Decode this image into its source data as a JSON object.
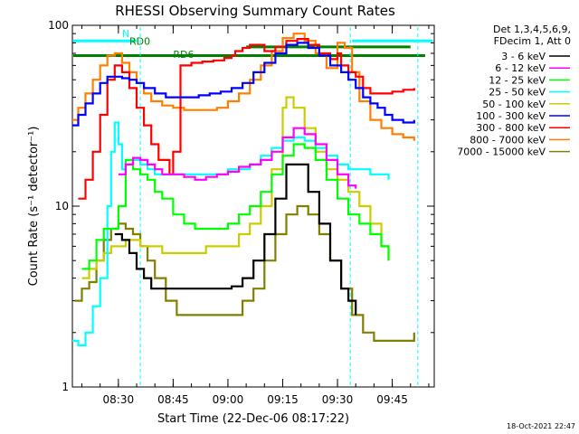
{
  "chart_data": {
    "type": "line",
    "title": "RHESSI Observing Summary Count Rates",
    "xlabel": "Start Time (22-Dec-06 08:17:22)",
    "ylabel": "Count Rate (s⁻¹ detector⁻¹)",
    "yscale": "log",
    "xlim": [
      17.4,
      116.5
    ],
    "ylim": [
      1,
      100
    ],
    "x_unit": "minutes after 08:00 UT",
    "x_ticks": [
      {
        "value": 30,
        "label": "08:30"
      },
      {
        "value": 45,
        "label": "08:45"
      },
      {
        "value": 60,
        "label": "09:00"
      },
      {
        "value": 75,
        "label": "09:15"
      },
      {
        "value": 90,
        "label": "09:30"
      },
      {
        "value": 105,
        "label": "09:45"
      }
    ],
    "y_ticks": [
      {
        "value": 1,
        "label": "1"
      },
      {
        "value": 10,
        "label": "10"
      },
      {
        "value": 100,
        "label": "100"
      }
    ],
    "legend_header": [
      "Det 1,3,4,5,6,9,",
      "FDecim 1, Att 0"
    ],
    "legend_position": "right",
    "flag_labels": [
      {
        "text": "N",
        "color": "#00ffff"
      },
      {
        "text": "RD0",
        "color": "#007f00"
      },
      {
        "text": "RD6",
        "color": "#007f00"
      }
    ],
    "series": [
      {
        "name": "3 - 6 keV",
        "color": "#000000",
        "x": [
          29,
          31,
          33,
          35,
          37,
          39,
          41,
          43,
          45,
          47,
          50,
          53,
          57,
          61,
          64,
          67,
          70,
          73,
          76,
          79,
          82,
          85,
          88,
          91,
          93,
          95
        ],
        "y": [
          7,
          6.5,
          5.5,
          4.5,
          4,
          3.5,
          3.5,
          3.5,
          3.5,
          3.5,
          3.5,
          3.5,
          3.5,
          3.6,
          4,
          5,
          7,
          11,
          17,
          17,
          12,
          8,
          5,
          3.5,
          3,
          2.5
        ]
      },
      {
        "name": "6 - 12 keV",
        "color": "#ff00ff",
        "x": [
          30,
          32,
          34,
          36,
          38,
          40,
          42,
          45,
          48,
          51,
          54,
          57,
          60,
          63,
          66,
          69,
          72,
          75,
          78,
          81,
          84,
          87,
          90,
          93,
          95
        ],
        "y": [
          15,
          17,
          18.5,
          18,
          17,
          16,
          15,
          15,
          14.5,
          14,
          14.5,
          15,
          15.5,
          16.5,
          17,
          18,
          20,
          24,
          27,
          25,
          22,
          18,
          15,
          13,
          12.5
        ]
      },
      {
        "name": "12 - 25 keV",
        "color": "#00ff00",
        "x": [
          20,
          22,
          24,
          26,
          28,
          30,
          32,
          34,
          36,
          38,
          40,
          42,
          45,
          48,
          51,
          54,
          57,
          60,
          63,
          66,
          69,
          72,
          75,
          78,
          81,
          84,
          87,
          90,
          93,
          96,
          99,
          102,
          104
        ],
        "y": [
          4.5,
          5,
          6.5,
          7.5,
          7.5,
          10,
          18,
          16,
          15,
          14,
          12,
          11,
          9,
          8,
          7.5,
          7.5,
          7.5,
          8,
          9,
          10,
          12,
          15,
          19,
          22,
          21,
          18,
          14,
          11,
          9,
          8,
          7,
          6,
          5
        ]
      },
      {
        "name": "25 - 50 keV",
        "color": "#00ffff",
        "x": [
          17,
          19,
          21,
          23,
          25,
          27,
          28,
          29,
          30,
          31,
          32,
          34,
          36,
          38,
          40,
          42,
          45,
          48,
          51,
          54,
          57,
          60,
          63,
          66,
          69,
          72,
          75,
          78,
          81,
          84,
          87,
          90,
          93,
          96,
          99,
          102,
          104
        ],
        "y": [
          1.8,
          1.7,
          2,
          2.8,
          4,
          10,
          20,
          29,
          22,
          16,
          17,
          18,
          17,
          16,
          15,
          15,
          15,
          15,
          15,
          15,
          15,
          16,
          16,
          17,
          19,
          21,
          23,
          24,
          23,
          21,
          19,
          17,
          16,
          16,
          15,
          15,
          14
        ]
      },
      {
        "name": "50 - 100 keV",
        "color": "#cccc00",
        "x": [
          20,
          22,
          24,
          26,
          28,
          30,
          32,
          34,
          36,
          38,
          40,
          42,
          45,
          48,
          51,
          54,
          57,
          60,
          63,
          66,
          69,
          72,
          75,
          76,
          78,
          81,
          84,
          87,
          90,
          93,
          96,
          99,
          102,
          104
        ],
        "y": [
          4,
          4.5,
          5,
          5.5,
          6,
          6,
          6.5,
          6.5,
          6,
          6,
          6,
          5.5,
          5.5,
          5.5,
          5.5,
          6,
          6,
          6,
          7,
          8,
          10,
          16,
          35,
          40,
          35,
          27,
          20,
          16,
          14,
          12,
          10,
          8,
          6,
          5
        ]
      },
      {
        "name": "100 - 300 keV",
        "color": "#0000ff",
        "x": [
          17,
          19,
          21,
          23,
          25,
          27,
          29,
          31,
          33,
          35,
          37,
          40,
          43,
          46,
          49,
          52,
          55,
          58,
          61,
          64,
          67,
          70,
          73,
          76,
          79,
          82,
          85,
          88,
          91,
          93,
          95,
          97,
          99,
          101,
          103,
          105,
          108,
          111
        ],
        "y": [
          28,
          32,
          37,
          42,
          48,
          52,
          52,
          51,
          50,
          48,
          45,
          42,
          40,
          40,
          40,
          41,
          42,
          43,
          45,
          48,
          55,
          62,
          70,
          78,
          80,
          75,
          68,
          60,
          55,
          50,
          45,
          40,
          37,
          35,
          32,
          30,
          29,
          30
        ]
      },
      {
        "name": "300 - 800 keV",
        "color": "#ff0000",
        "x": [
          19,
          21,
          23,
          25,
          27,
          29,
          31,
          33,
          35,
          37,
          39,
          41,
          44,
          45,
          47,
          50,
          53,
          56,
          59,
          61,
          62,
          64,
          66,
          68,
          70,
          73,
          76,
          79,
          82,
          85,
          88,
          90,
          91,
          93,
          95,
          97,
          99,
          102,
          105,
          108,
          111
        ],
        "y": [
          11,
          14,
          20,
          32,
          50,
          60,
          55,
          45,
          35,
          28,
          22,
          18,
          15,
          20,
          60,
          62,
          63,
          64,
          66,
          68,
          72,
          75,
          78,
          78,
          72,
          76,
          82,
          84,
          78,
          70,
          65,
          70,
          60,
          55,
          52,
          45,
          42,
          42,
          43,
          44,
          45
        ]
      },
      {
        "name": "800 - 7000 keV",
        "color": "#ff8000",
        "x": [
          17,
          19,
          21,
          23,
          25,
          27,
          29,
          31,
          33,
          35,
          37,
          39,
          42,
          45,
          48,
          51,
          54,
          57,
          60,
          63,
          66,
          69,
          72,
          75,
          78,
          81,
          84,
          87,
          90,
          92,
          94,
          96,
          99,
          102,
          105,
          108,
          111
        ],
        "y": [
          30,
          35,
          42,
          50,
          60,
          68,
          70,
          62,
          55,
          48,
          42,
          38,
          36,
          35,
          34,
          34,
          34,
          35,
          38,
          42,
          50,
          60,
          72,
          85,
          90,
          82,
          70,
          58,
          80,
          75,
          55,
          38,
          30,
          27,
          25,
          24,
          23
        ]
      },
      {
        "name": "7000 - 15000 keV",
        "color": "#808000",
        "x": [
          18,
          20,
          22,
          24,
          26,
          28,
          30,
          32,
          34,
          36,
          38,
          40,
          43,
          46,
          49,
          52,
          55,
          58,
          61,
          64,
          67,
          70,
          73,
          76,
          79,
          82,
          85,
          88,
          91,
          94,
          97,
          100,
          103,
          106,
          109,
          111
        ],
        "y": [
          3,
          3.5,
          3.8,
          5,
          6.5,
          7.5,
          8,
          7.5,
          7,
          6,
          5,
          4,
          3,
          2.5,
          2.5,
          2.5,
          2.5,
          2.5,
          2.5,
          3,
          3.5,
          5,
          7,
          9,
          10,
          9,
          7,
          5,
          3.5,
          2.5,
          2,
          1.8,
          1.8,
          1.8,
          1.8,
          2
        ]
      }
    ],
    "flag_segments": [
      {
        "label": "N",
        "color": "#00ffff",
        "level": 82,
        "x": [
          [
            17.4,
            35
          ],
          [
            94,
            116
          ]
        ]
      },
      {
        "label": "RD0",
        "color": "#007f00",
        "level": 76,
        "x": [
          [
            65,
            110
          ]
        ]
      },
      {
        "label": "RD6",
        "color": "#007f00",
        "level": 68,
        "x": [
          [
            17.4,
            114
          ]
        ]
      }
    ],
    "vertical_markers": {
      "color": "#00ffff",
      "x": [
        36,
        93.5,
        112
      ]
    }
  },
  "timestamp": "18-Oct-2021 22:47"
}
